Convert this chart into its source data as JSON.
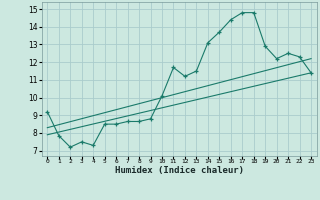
{
  "title": "",
  "xlabel": "Humidex (Indice chaleur)",
  "bg_color": "#cce8e0",
  "grid_color": "#aacccc",
  "line_color": "#1a7a6a",
  "xlim": [
    -0.5,
    23.5
  ],
  "ylim": [
    6.7,
    15.4
  ],
  "xticks": [
    0,
    1,
    2,
    3,
    4,
    5,
    6,
    7,
    8,
    9,
    10,
    11,
    12,
    13,
    14,
    15,
    16,
    17,
    18,
    19,
    20,
    21,
    22,
    23
  ],
  "yticks": [
    7,
    8,
    9,
    10,
    11,
    12,
    13,
    14,
    15
  ],
  "curve1_x": [
    0,
    1,
    2,
    3,
    4,
    5,
    6,
    7,
    8,
    9,
    10,
    11,
    12,
    13,
    14,
    15,
    16,
    17,
    18,
    19,
    20,
    21,
    22,
    23
  ],
  "curve1_y": [
    9.2,
    7.85,
    7.2,
    7.5,
    7.3,
    8.5,
    8.5,
    8.65,
    8.65,
    8.8,
    10.1,
    11.7,
    11.2,
    11.5,
    13.1,
    13.7,
    14.4,
    14.8,
    14.8,
    12.9,
    12.2,
    12.5,
    12.3,
    11.4
  ],
  "curve2_x": [
    0,
    23
  ],
  "curve2_y": [
    7.9,
    11.4
  ],
  "curve3_x": [
    0,
    23
  ],
  "curve3_y": [
    8.3,
    12.2
  ],
  "marker_x": [
    0,
    1,
    2,
    3,
    4,
    5,
    6,
    7,
    8,
    9,
    10,
    11,
    12,
    13,
    14,
    15,
    16,
    17,
    18,
    19,
    20,
    21,
    22,
    23
  ],
  "marker_y": [
    9.2,
    7.85,
    7.2,
    7.5,
    7.3,
    8.5,
    8.5,
    8.65,
    8.65,
    8.8,
    10.1,
    11.7,
    11.2,
    11.5,
    13.1,
    13.7,
    14.4,
    14.8,
    14.8,
    12.9,
    12.2,
    12.5,
    12.3,
    11.4
  ]
}
